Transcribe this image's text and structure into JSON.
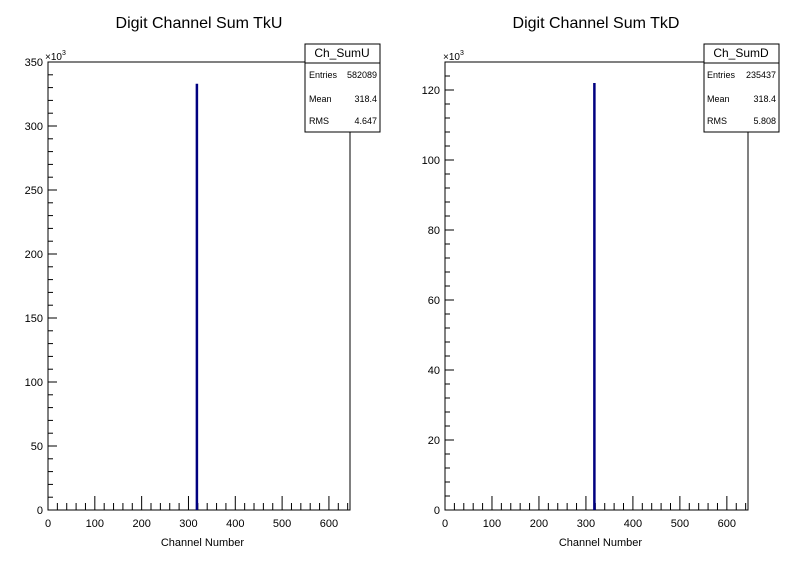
{
  "chart_data": [
    {
      "type": "bar",
      "title": "Digit Channel Sum TkU",
      "xlabel": "Channel Number",
      "ylabel": "",
      "xlim": [
        0,
        645
      ],
      "ylim": [
        0,
        350
      ],
      "x_ticks": [
        0,
        100,
        200,
        300,
        400,
        500,
        600
      ],
      "y_ticks": [
        0,
        50,
        100,
        150,
        200,
        250,
        300,
        350
      ],
      "y_multiplier": "×10",
      "y_multiplier_exp": "3",
      "grid": false,
      "series": [
        {
          "x": [
            318
          ],
          "values": [
            333
          ]
        }
      ],
      "bar_color": "#000080",
      "stats_box": {
        "name": "Ch_SumU",
        "rows": [
          {
            "label": "Entries",
            "value": "582089"
          },
          {
            "label": "Mean",
            "value": "318.4"
          },
          {
            "label": "RMS",
            "value": "4.647"
          }
        ]
      }
    },
    {
      "type": "bar",
      "title": "Digit Channel Sum TkD",
      "xlabel": "Channel Number",
      "ylabel": "",
      "xlim": [
        0,
        645
      ],
      "ylim": [
        0,
        128
      ],
      "x_ticks": [
        0,
        100,
        200,
        300,
        400,
        500,
        600
      ],
      "y_ticks": [
        0,
        20,
        40,
        60,
        80,
        100,
        120
      ],
      "y_multiplier": "×10",
      "y_multiplier_exp": "3",
      "grid": false,
      "series": [
        {
          "x": [
            318
          ],
          "values": [
            122
          ]
        }
      ],
      "bar_color": "#000080",
      "stats_box": {
        "name": "Ch_SumD",
        "rows": [
          {
            "label": "Entries",
            "value": "235437"
          },
          {
            "label": "Mean",
            "value": "318.4"
          },
          {
            "label": "RMS",
            "value": "5.808"
          }
        ]
      }
    }
  ]
}
